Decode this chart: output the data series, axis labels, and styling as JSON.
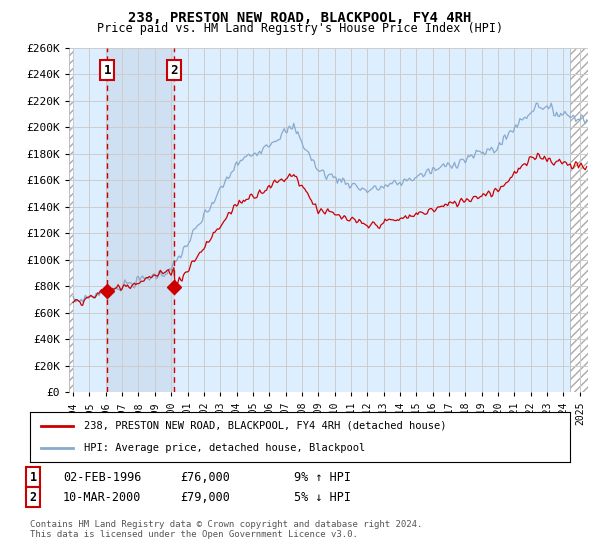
{
  "title": "238, PRESTON NEW ROAD, BLACKPOOL, FY4 4RH",
  "subtitle": "Price paid vs. HM Land Registry's House Price Index (HPI)",
  "legend_line1": "238, PRESTON NEW ROAD, BLACKPOOL, FY4 4RH (detached house)",
  "legend_line2": "HPI: Average price, detached house, Blackpool",
  "transaction1_label": "1",
  "transaction1_date": "02-FEB-1996",
  "transaction1_price": "£76,000",
  "transaction1_hpi": "9% ↑ HPI",
  "transaction1_year": 1996.09,
  "transaction1_value": 76000,
  "transaction2_label": "2",
  "transaction2_date": "10-MAR-2000",
  "transaction2_price": "£79,000",
  "transaction2_hpi": "5% ↓ HPI",
  "transaction2_year": 2000.19,
  "transaction2_value": 79000,
  "ylim": [
    0,
    260000
  ],
  "yticks": [
    0,
    20000,
    40000,
    60000,
    80000,
    100000,
    120000,
    140000,
    160000,
    180000,
    200000,
    220000,
    240000,
    260000
  ],
  "xlim_start": 1993.75,
  "xlim_end": 2025.5,
  "red_color": "#cc0000",
  "blue_color": "#88aacc",
  "hatch_color": "#bbbbbb",
  "background_color": "#ddeeff",
  "grid_color": "#cccccc",
  "footer": "Contains HM Land Registry data © Crown copyright and database right 2024.\nThis data is licensed under the Open Government Licence v3.0."
}
